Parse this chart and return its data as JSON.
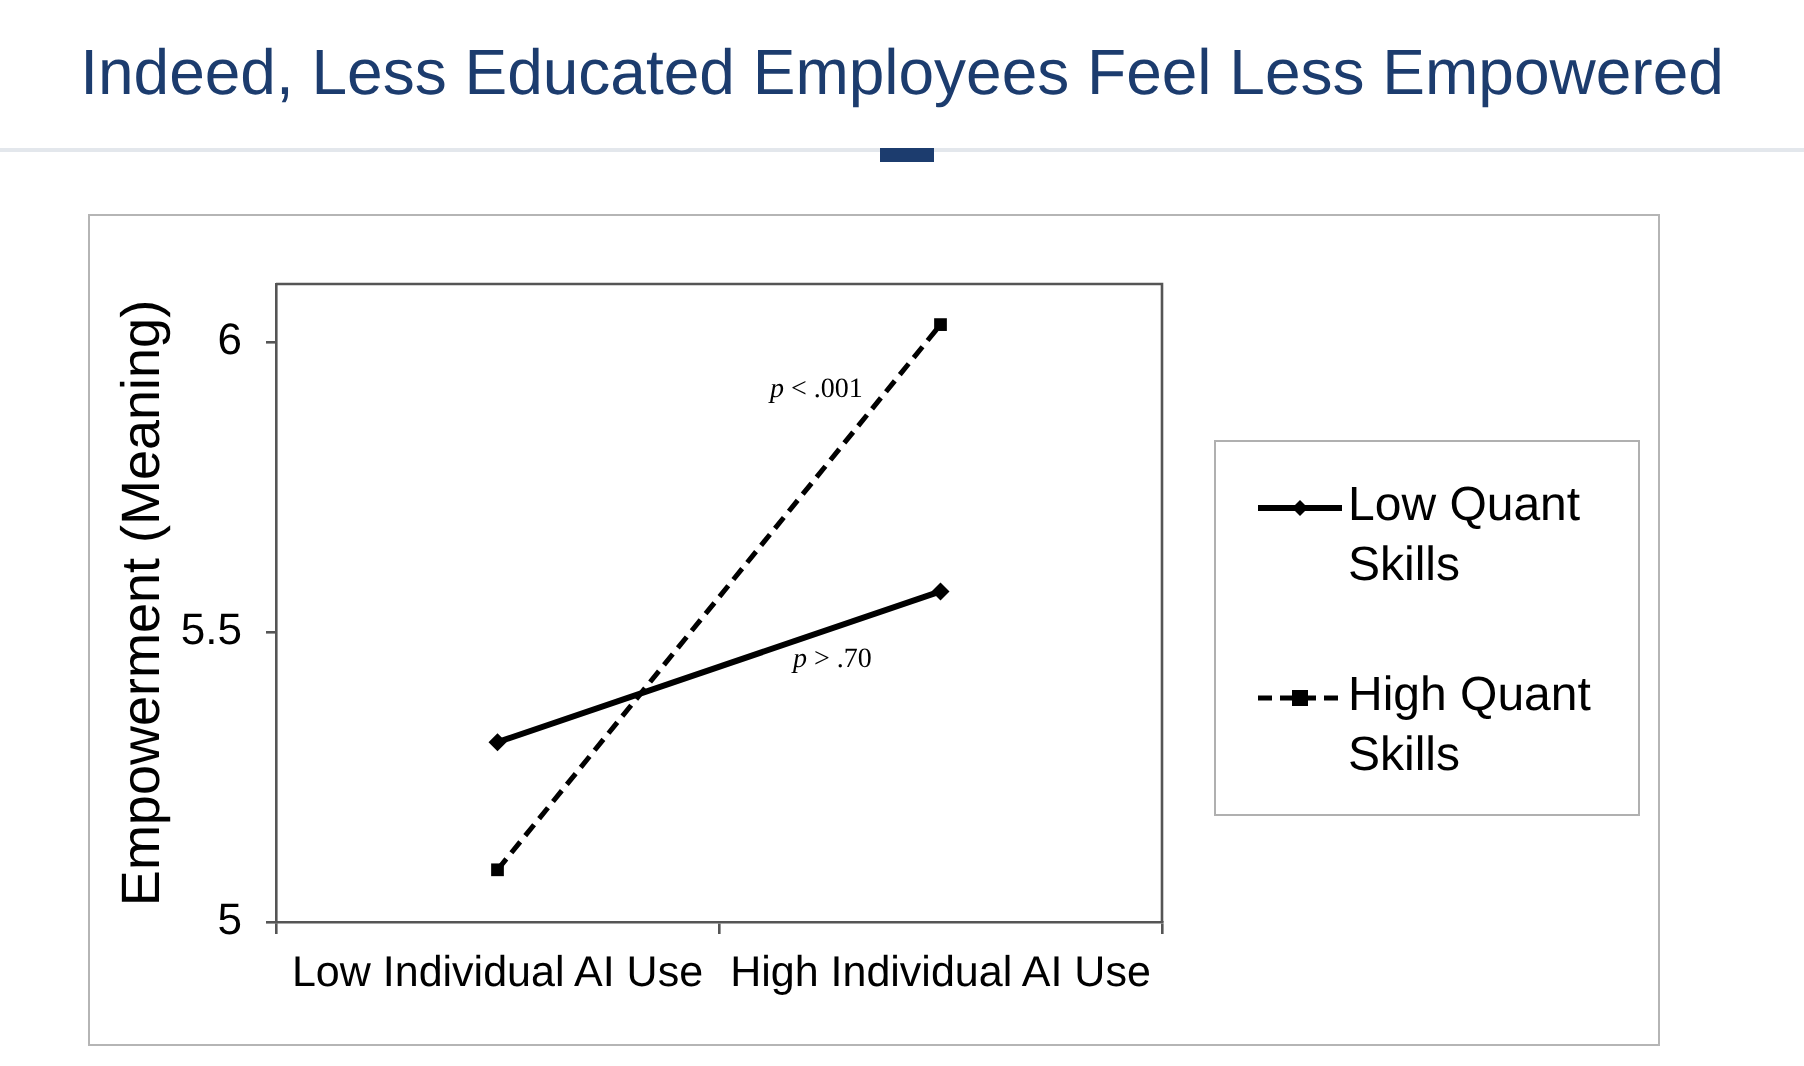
{
  "chart_data": {
    "type": "line",
    "title": "Indeed, Less Educated Employees Feel Less Empowered",
    "ylabel": "Empowerment (Meaning)",
    "categories": [
      "Low Individual AI Use",
      "High Individual AI Use"
    ],
    "series": [
      {
        "name": "Low Quant Skills",
        "color": "#000000",
        "values": [
          5.31,
          5.57
        ],
        "marker": "diamond",
        "line_style": "solid"
      },
      {
        "name": "High Quant Skills",
        "color": "#000000",
        "values": [
          5.09,
          6.03
        ],
        "marker": "square",
        "line_style": "dashed"
      }
    ],
    "ylim": [
      5,
      6.1
    ],
    "yticks": [
      5,
      5.5,
      6
    ],
    "grid": false,
    "legend": "right",
    "annotations": [
      "p < .001",
      "p > .70"
    ]
  }
}
